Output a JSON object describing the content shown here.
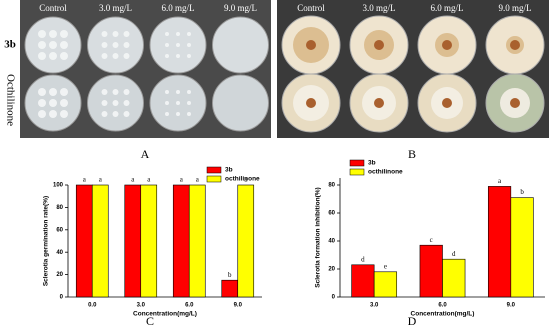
{
  "panels": {
    "A": {
      "label": "A",
      "columns": [
        "Control",
        "3.0 mg/L",
        "6.0 mg/L",
        "9.0 mg/L"
      ],
      "rows": [
        "3b",
        "Octhilinone"
      ]
    },
    "B": {
      "label": "B",
      "columns": [
        "Control",
        "3.0 mg/L",
        "6.0 mg/L",
        "9.0 mg/L"
      ]
    }
  },
  "chart_data": [
    {
      "type": "bar",
      "panel_label": "C",
      "ylabel": "Sclerotia germination rate(%)",
      "xlabel": "Concentration(mg/L)",
      "categories": [
        "0.0",
        "3.0",
        "6.0",
        "9.0"
      ],
      "series": [
        {
          "name": "3b",
          "color": "#ff0000",
          "values": [
            100,
            100,
            100,
            15
          ],
          "letters": [
            "a",
            "a",
            "a",
            "b"
          ]
        },
        {
          "name": "octhilinone",
          "color": "#ffff00",
          "values": [
            100,
            100,
            100,
            100
          ],
          "letters": [
            "a",
            "a",
            "a",
            "a"
          ]
        }
      ],
      "ylim": [
        0,
        100
      ],
      "yticks": [
        0,
        20,
        40,
        60,
        80,
        100
      ],
      "legend": "top-right"
    },
    {
      "type": "bar",
      "panel_label": "D",
      "ylabel": "Sclerotia formation inhibition(%)",
      "xlabel": "Concentration(mg/L)",
      "categories": [
        "3.0",
        "6.0",
        "9.0"
      ],
      "series": [
        {
          "name": "3b",
          "color": "#ff0000",
          "values": [
            23,
            37,
            79
          ],
          "letters": [
            "d",
            "c",
            "a"
          ]
        },
        {
          "name": "octhilinone",
          "color": "#ffff00",
          "values": [
            18,
            27,
            71
          ],
          "letters": [
            "e",
            "d",
            "b"
          ]
        }
      ],
      "ylim": [
        0,
        85
      ],
      "yticks": [
        0,
        20,
        40,
        60,
        80
      ],
      "legend": "top-left"
    }
  ]
}
